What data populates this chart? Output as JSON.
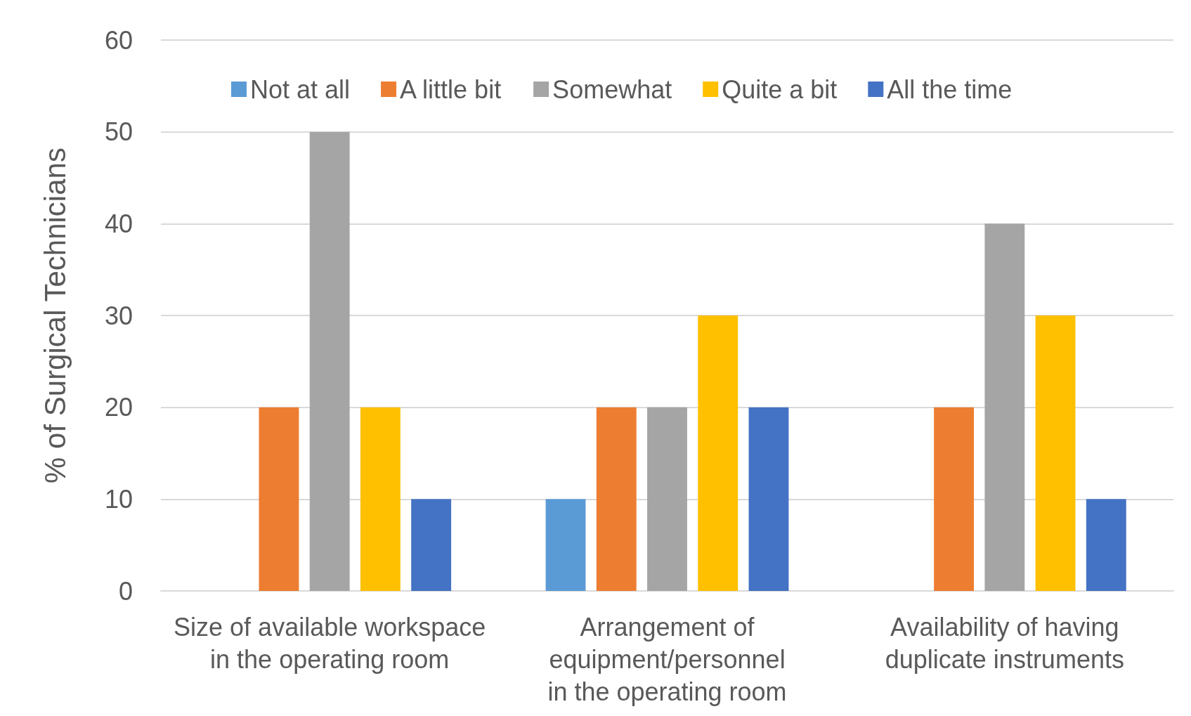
{
  "chart_data": {
    "type": "bar",
    "ylabel": "% of Surgical Technicians",
    "categories": [
      "Size of available workspace in the operating room",
      "Arrangement of equipment/personnel in the operating room",
      "Availability of having duplicate instruments"
    ],
    "series": [
      {
        "name": "Not at all",
        "color": "#5b9bd5",
        "values": [
          0,
          10,
          0
        ]
      },
      {
        "name": "A little bit",
        "color": "#ed7d31",
        "values": [
          20,
          20,
          20
        ]
      },
      {
        "name": "Somewhat",
        "color": "#a5a5a5",
        "values": [
          50,
          20,
          40
        ]
      },
      {
        "name": "Quite a bit",
        "color": "#ffc000",
        "values": [
          20,
          30,
          30
        ]
      },
      {
        "name": "All the time",
        "color": "#4472c4",
        "values": [
          10,
          20,
          10
        ]
      }
    ],
    "ylim": [
      0,
      60
    ],
    "yticks": [
      0,
      10,
      20,
      30,
      40,
      50,
      60
    ],
    "grid": "y",
    "legend": "top"
  }
}
